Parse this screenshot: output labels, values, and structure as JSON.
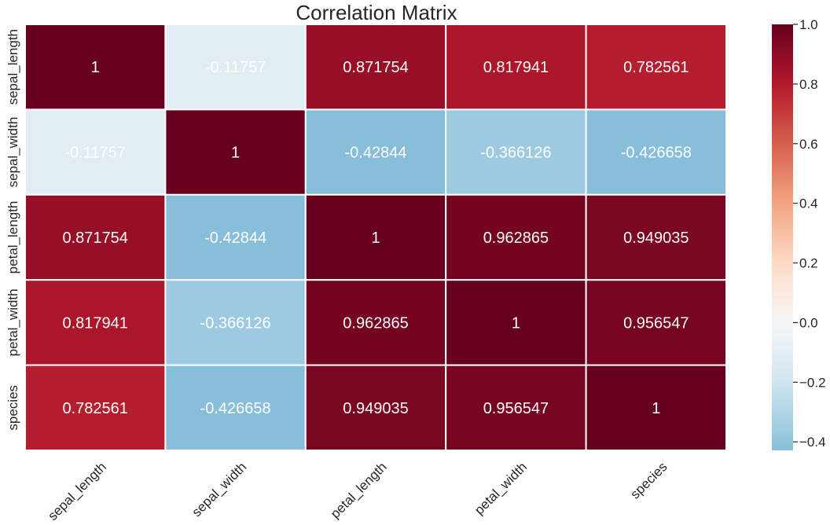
{
  "chart_data": {
    "type": "heatmap",
    "title": "Correlation Matrix",
    "x_categories": [
      "sepal_length",
      "sepal_width",
      "petal_length",
      "petal_width",
      "species"
    ],
    "y_categories": [
      "sepal_length",
      "sepal_width",
      "petal_length",
      "petal_width",
      "species"
    ],
    "values": [
      [
        1,
        -0.11757,
        0.871754,
        0.817941,
        0.782561
      ],
      [
        -0.11757,
        1,
        -0.42844,
        -0.366126,
        -0.426658
      ],
      [
        0.871754,
        -0.42844,
        1,
        0.962865,
        0.949035
      ],
      [
        0.817941,
        -0.366126,
        0.962865,
        1,
        0.956547
      ],
      [
        0.782561,
        -0.426658,
        0.949035,
        0.956547,
        1
      ]
    ],
    "annotations": [
      [
        "1",
        "-0.11757",
        "0.871754",
        "0.817941",
        "0.782561"
      ],
      [
        "-0.11757",
        "1",
        "-0.42844",
        "-0.366126",
        "-0.426658"
      ],
      [
        "0.871754",
        "-0.42844",
        "1",
        "0.962865",
        "0.949035"
      ],
      [
        "0.817941",
        "-0.366126",
        "0.962865",
        "1",
        "0.956547"
      ],
      [
        "0.782561",
        "-0.426658",
        "0.949035",
        "0.956547",
        "1"
      ]
    ],
    "colormap": "RdBu_r",
    "vmin": -0.42844,
    "vmax": 1,
    "colorbar": {
      "ticks": [
        -0.4,
        -0.2,
        0.0,
        0.2,
        0.4,
        0.6,
        0.8,
        1.0
      ],
      "tick_labels": [
        "−0.4",
        "−0.2",
        "0.0",
        "0.2",
        "0.4",
        "0.6",
        "0.8",
        "1.0"
      ]
    },
    "colormap_stops": [
      "#053061",
      "#2166ac",
      "#4393c3",
      "#92c5de",
      "#d1e5f0",
      "#f7f7f7",
      "#fddbc7",
      "#f4a582",
      "#d6604d",
      "#b2182b",
      "#67001f"
    ],
    "cell_border_color": "#ffffff",
    "annotation_color": "#ffffff",
    "text_color": "#262626",
    "grid": false,
    "legend": "colorbar-right"
  }
}
